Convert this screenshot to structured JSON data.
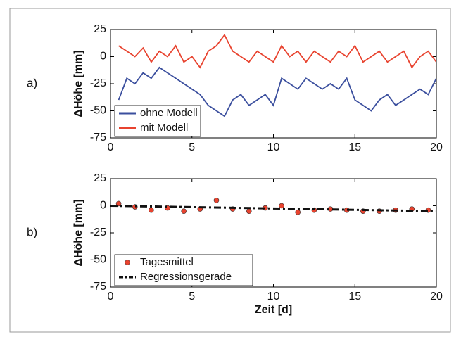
{
  "chart_data": [
    {
      "type": "line",
      "panel_label": "a)",
      "ylabel": "ΔHöhe [mm]",
      "x": [
        0.5,
        1,
        1.5,
        2,
        2.5,
        3,
        3.5,
        4,
        4.5,
        5,
        5.5,
        6,
        6.5,
        7,
        7.5,
        8,
        8.5,
        9,
        9.5,
        10,
        10.5,
        11,
        11.5,
        12,
        12.5,
        13,
        13.5,
        14,
        14.5,
        15,
        15.5,
        16,
        16.5,
        17,
        17.5,
        18,
        18.5,
        19,
        19.5,
        20
      ],
      "series": [
        {
          "name": "ohne Modell",
          "color": "#3b4f9e",
          "values": [
            -40,
            -20,
            -25,
            -15,
            -20,
            -10,
            -15,
            -20,
            -25,
            -30,
            -35,
            -45,
            -50,
            -55,
            -40,
            -35,
            -45,
            -40,
            -35,
            -45,
            -20,
            -25,
            -30,
            -20,
            -25,
            -30,
            -25,
            -30,
            -20,
            -40,
            -45,
            -50,
            -40,
            -35,
            -45,
            -40,
            -35,
            -30,
            -35,
            -20
          ]
        },
        {
          "name": "mit Modell",
          "color": "#e8432f",
          "values": [
            10,
            5,
            0,
            8,
            -5,
            5,
            0,
            10,
            -5,
            0,
            -10,
            5,
            10,
            20,
            5,
            0,
            -5,
            5,
            0,
            -5,
            10,
            0,
            5,
            -5,
            5,
            0,
            -5,
            5,
            0,
            10,
            -5,
            0,
            5,
            -5,
            0,
            5,
            -10,
            0,
            5,
            -5
          ]
        }
      ],
      "xlim": [
        0,
        20
      ],
      "xticks": [
        0,
        5,
        10,
        15,
        20
      ],
      "ylim": [
        -75,
        25
      ],
      "yticks": [
        25,
        0,
        -25,
        -50,
        -75
      ],
      "legend": "lower left"
    },
    {
      "type": "scatter",
      "panel_label": "b)",
      "ylabel": "ΔHöhe [mm]",
      "xlabel": "Zeit [d]",
      "series": [
        {
          "name": "Tagesmittel",
          "type": "scatter",
          "color": "#e8432f",
          "x": [
            0.5,
            1.5,
            2.5,
            3.5,
            4.5,
            5.5,
            6.5,
            7.5,
            8.5,
            9.5,
            10.5,
            11.5,
            12.5,
            13.5,
            14.5,
            15.5,
            16.5,
            17.5,
            18.5,
            19.5
          ],
          "values": [
            2,
            -1,
            -4,
            -2,
            -5,
            -3,
            5,
            -3,
            -5,
            -2,
            0,
            -6,
            -4,
            -3,
            -4,
            -5,
            -5,
            -4,
            -3,
            -4
          ]
        },
        {
          "name": "Regressionsgerade",
          "type": "line",
          "style": "dash-dot",
          "color": "#111111",
          "x": [
            0,
            20
          ],
          "values": [
            0,
            -5
          ]
        }
      ],
      "xlim": [
        0,
        20
      ],
      "xticks": [
        0,
        5,
        10,
        15,
        20
      ],
      "ylim": [
        -75,
        25
      ],
      "yticks": [
        25,
        0,
        -25,
        -50,
        -75
      ],
      "legend": "lower left"
    }
  ]
}
